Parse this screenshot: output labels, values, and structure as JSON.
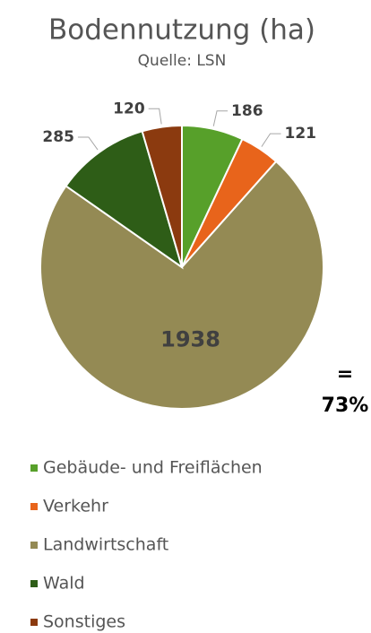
{
  "chart_data": {
    "type": "pie",
    "title": "Bodennutzung (ha)",
    "subtitle": "Quelle: LSN",
    "categories": [
      "Gebäude- und Freiflächen",
      "Verkehr",
      "Landwirtschaft",
      "Wald",
      "Sonstiges"
    ],
    "values": [
      186,
      121,
      1938,
      285,
      120
    ],
    "colors": [
      "#57a02a",
      "#e8641b",
      "#948a54",
      "#2e5d17",
      "#8b3a0f"
    ],
    "annotation": [
      "=",
      "73%"
    ],
    "legend": "bottom"
  }
}
